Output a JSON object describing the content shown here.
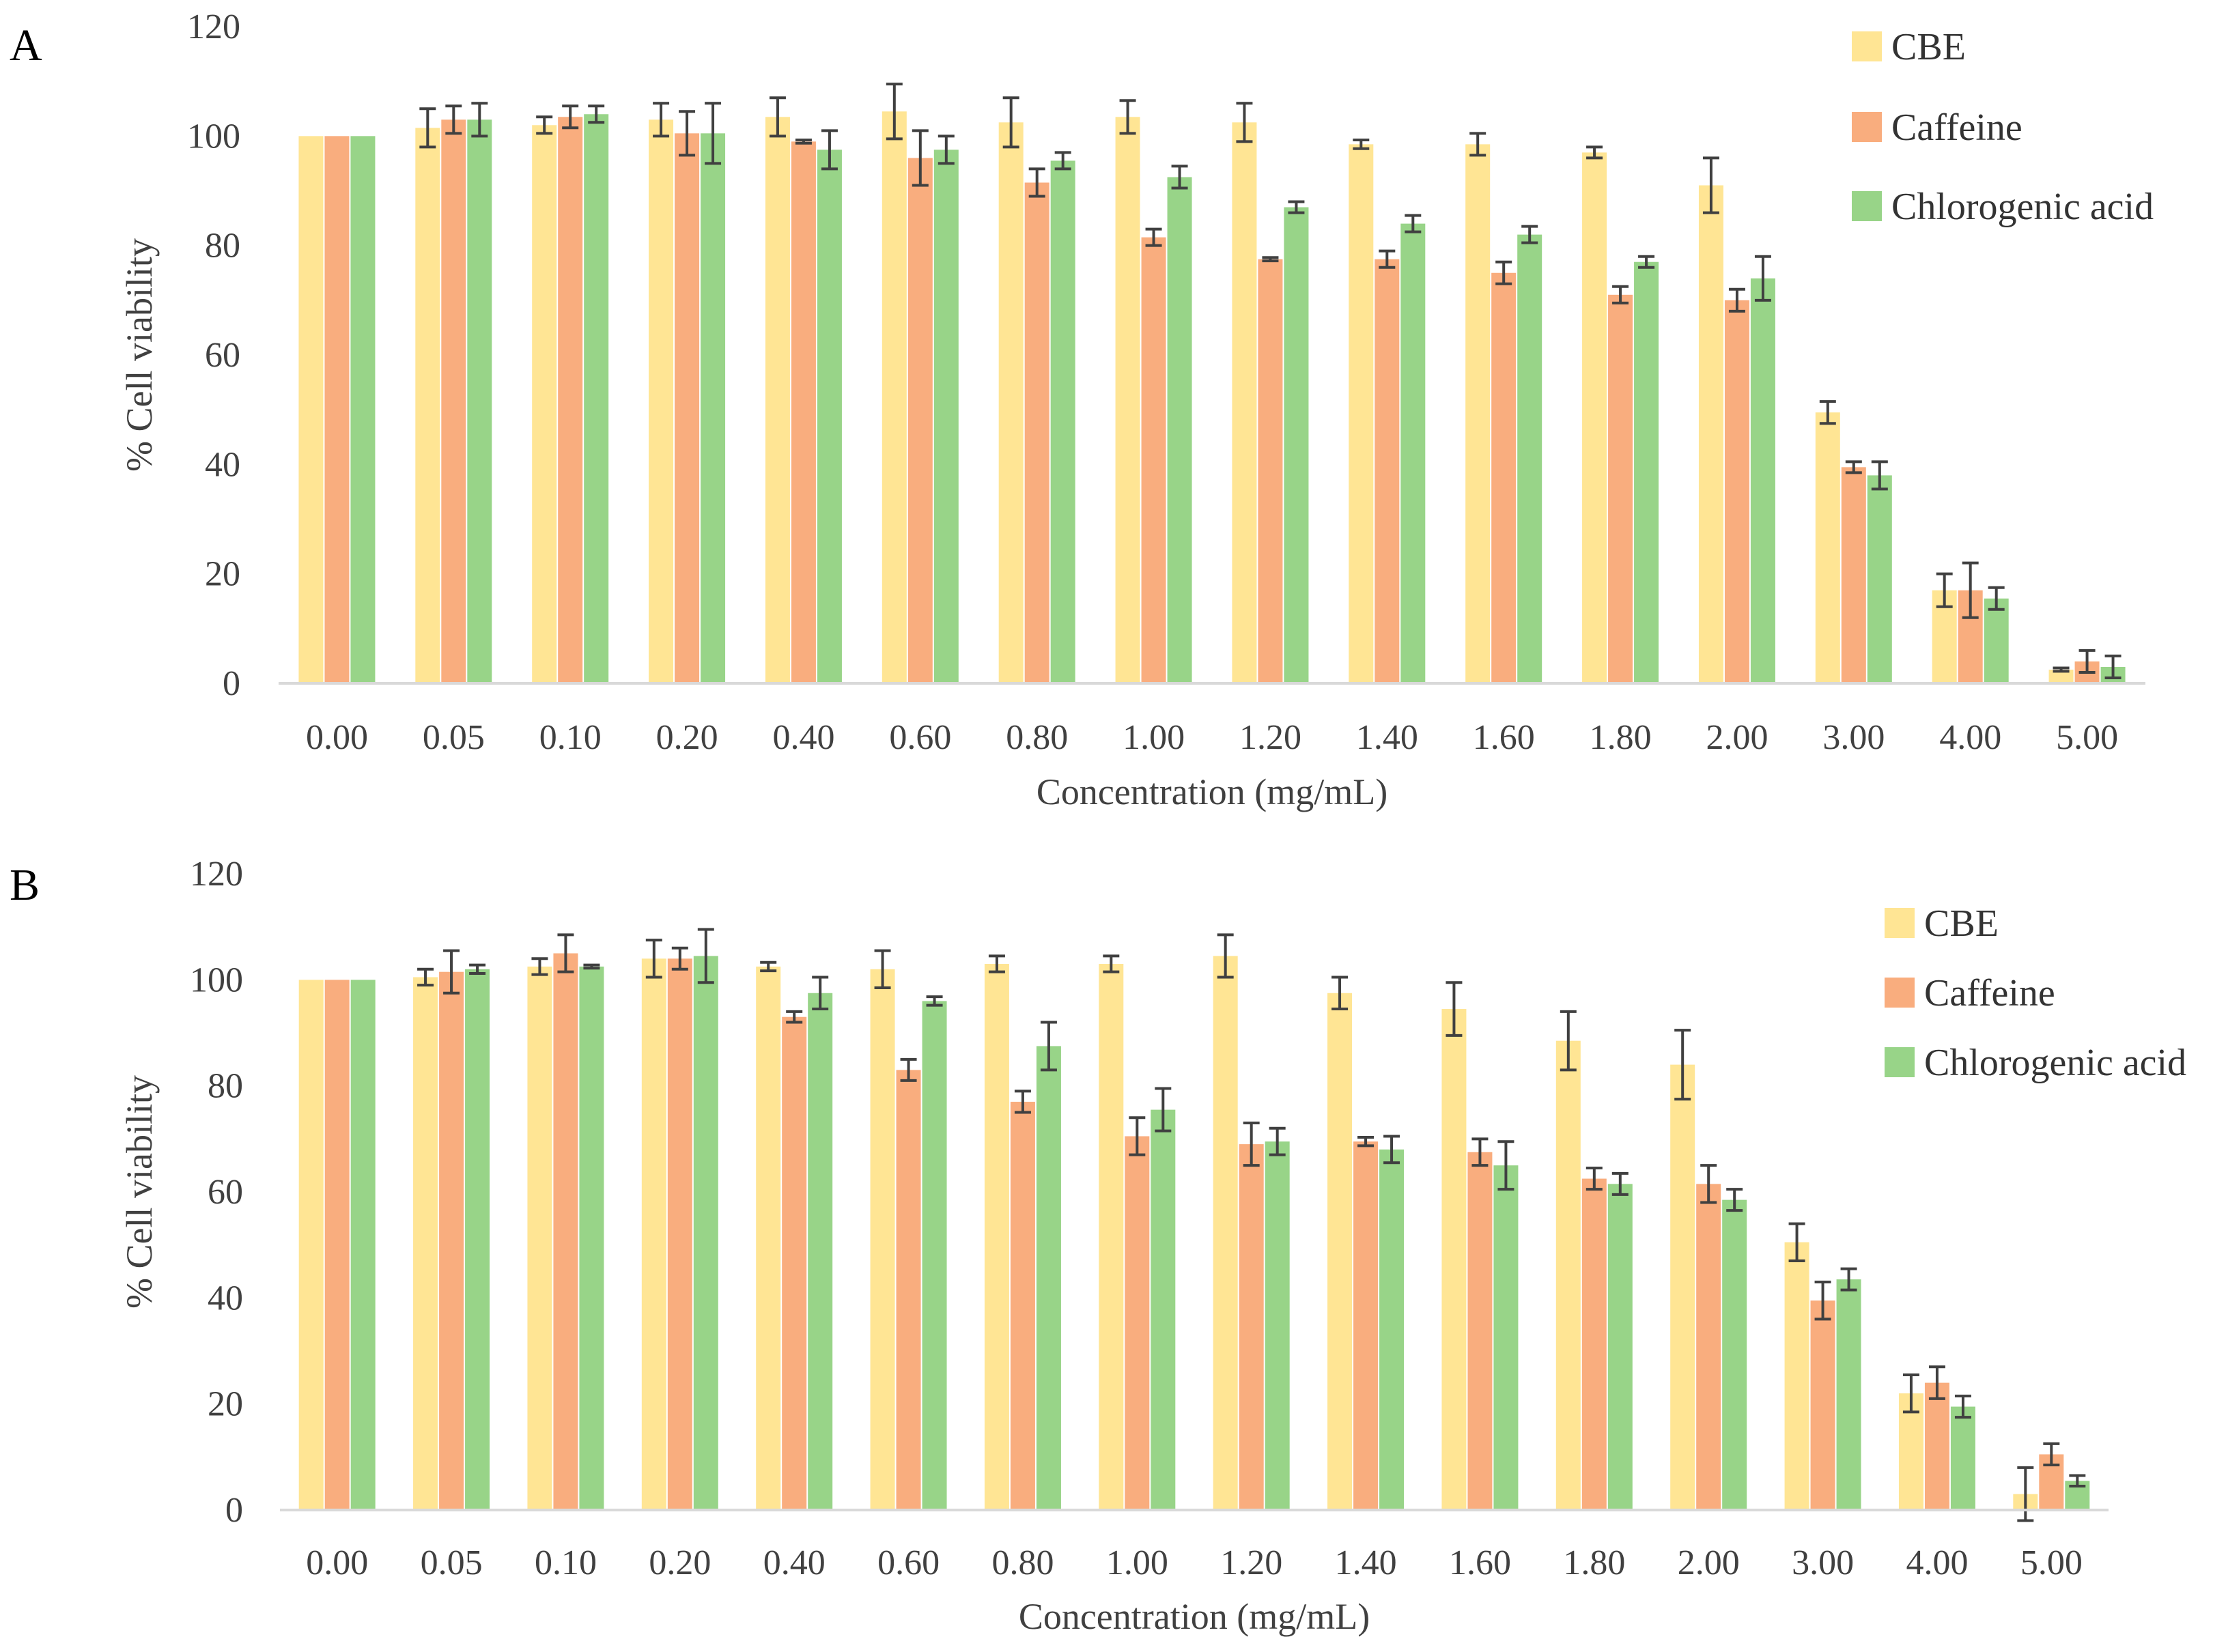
{
  "colors": {
    "CBE": "#FFE594",
    "Caffeine": "#F9AD7E",
    "Chlorogenic acid": "#98D488",
    "axis": "#D9D9D9",
    "error_bar": "#404040"
  },
  "chart_data": [
    {
      "panel_label": "A",
      "type": "bar",
      "xlabel": "Concentration (mg/mL)",
      "ylabel": "% Cell viability",
      "ylim": [
        0,
        120
      ],
      "yticks": [
        "0",
        "20",
        "40",
        "60",
        "80",
        "100",
        "120"
      ],
      "grid": false,
      "legend": "top-right",
      "categories": [
        "0.00",
        "0.05",
        "0.10",
        "0.20",
        "0.40",
        "0.60",
        "0.80",
        "1.00",
        "1.20",
        "1.40",
        "1.60",
        "1.80",
        "2.00",
        "3.00",
        "4.00",
        "5.00"
      ],
      "series": [
        {
          "name": "CBE",
          "values": [
            100,
            101.5,
            102,
            103,
            103.5,
            104.5,
            102.5,
            103.5,
            102.5,
            98.5,
            98.5,
            97,
            91,
            49.5,
            17,
            2.5
          ],
          "errors": [
            0,
            3.5,
            1.5,
            3,
            3.5,
            5,
            4.5,
            3,
            3.5,
            0.8,
            2,
            1,
            5,
            2,
            3,
            0.3
          ]
        },
        {
          "name": "Caffeine",
          "values": [
            100,
            103,
            103.5,
            100.5,
            99,
            96,
            91.5,
            81.5,
            77.5,
            77.5,
            75,
            71,
            70,
            39.5,
            17,
            4
          ],
          "errors": [
            0,
            2.5,
            2,
            4,
            0.3,
            5,
            2.5,
            1.5,
            0.3,
            1.5,
            2,
            1.5,
            2,
            1,
            5,
            2
          ]
        },
        {
          "name": "Chlorogenic acid",
          "values": [
            100,
            103,
            104,
            100.5,
            97.5,
            97.5,
            95.5,
            92.5,
            87,
            84,
            82,
            77,
            74,
            38,
            15.5,
            3
          ],
          "errors": [
            0,
            3,
            1.5,
            5.5,
            3.5,
            2.5,
            1.5,
            2,
            1,
            1.5,
            1.5,
            1,
            4,
            2.5,
            2,
            2
          ]
        }
      ]
    },
    {
      "panel_label": "B",
      "type": "bar",
      "xlabel": "Concentration (mg/mL)",
      "ylabel": "% Cell viability",
      "ylim": [
        0,
        120
      ],
      "yticks": [
        "0",
        "20",
        "40",
        "60",
        "80",
        "100",
        "120"
      ],
      "grid": false,
      "legend": "top-right",
      "categories": [
        "0.00",
        "0.05",
        "0.10",
        "0.20",
        "0.40",
        "0.60",
        "0.80",
        "1.00",
        "1.20",
        "1.40",
        "1.60",
        "1.80",
        "2.00",
        "3.00",
        "4.00",
        "5.00"
      ],
      "series": [
        {
          "name": "CBE",
          "values": [
            100,
            100.5,
            102.5,
            104,
            102.5,
            102,
            103,
            103,
            104.5,
            97.5,
            94.5,
            88.5,
            84,
            50.5,
            22,
            3
          ],
          "errors": [
            0,
            1.5,
            1.5,
            3.5,
            0.8,
            3.5,
            1.5,
            1.5,
            4,
            3,
            5,
            5.5,
            6.5,
            3.5,
            3.5,
            5
          ]
        },
        {
          "name": "Caffeine",
          "values": [
            100,
            101.5,
            105,
            104,
            93,
            83,
            77,
            70.5,
            69,
            69.5,
            67.5,
            62.5,
            61.5,
            39.5,
            24,
            10.5
          ],
          "errors": [
            0,
            4,
            3.5,
            2,
            1,
            2,
            2,
            3.5,
            4,
            0.8,
            2.5,
            2,
            3.5,
            3.5,
            3,
            2
          ]
        },
        {
          "name": "Chlorogenic acid",
          "values": [
            100,
            102,
            102.5,
            104.5,
            97.5,
            96,
            87.5,
            75.5,
            69.5,
            68,
            65,
            61.5,
            58.5,
            43.5,
            19.5,
            5.5
          ],
          "errors": [
            0,
            0.8,
            0.3,
            5,
            3,
            0.8,
            4.5,
            4,
            2.5,
            2.5,
            4.5,
            2,
            2,
            2,
            2,
            1
          ]
        }
      ]
    }
  ]
}
